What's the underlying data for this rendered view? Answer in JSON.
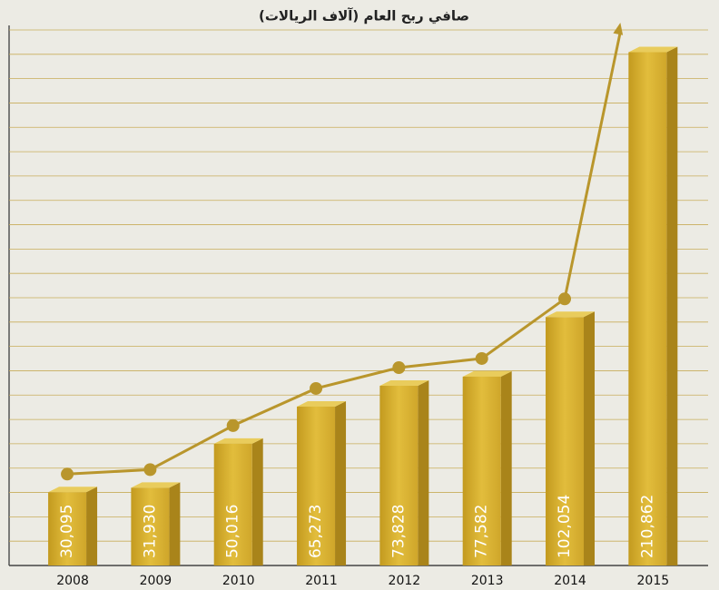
{
  "chart_data": {
    "type": "bar",
    "title": "صافي ربح العام (آلاف الريالات)",
    "categories": [
      "2008",
      "2009",
      "2010",
      "2011",
      "2012",
      "2013",
      "2014",
      "2015"
    ],
    "values": [
      30095,
      31930,
      50016,
      65273,
      73828,
      77582,
      102054,
      210862
    ],
    "value_labels": [
      "30,095",
      "31,930",
      "50,016",
      "65,273",
      "73,828",
      "77,582",
      "102,054",
      "210,862"
    ],
    "color": "#d4a92a",
    "ylim": [
      0,
      220000
    ],
    "yticks": [
      0,
      10000,
      20000,
      30000,
      40000,
      50000,
      60000,
      70000,
      80000,
      90000,
      100000,
      110000,
      120000,
      130000,
      140000,
      150000,
      160000,
      170000,
      180000,
      190000,
      200000,
      210000,
      220000
    ],
    "grid": true
  }
}
